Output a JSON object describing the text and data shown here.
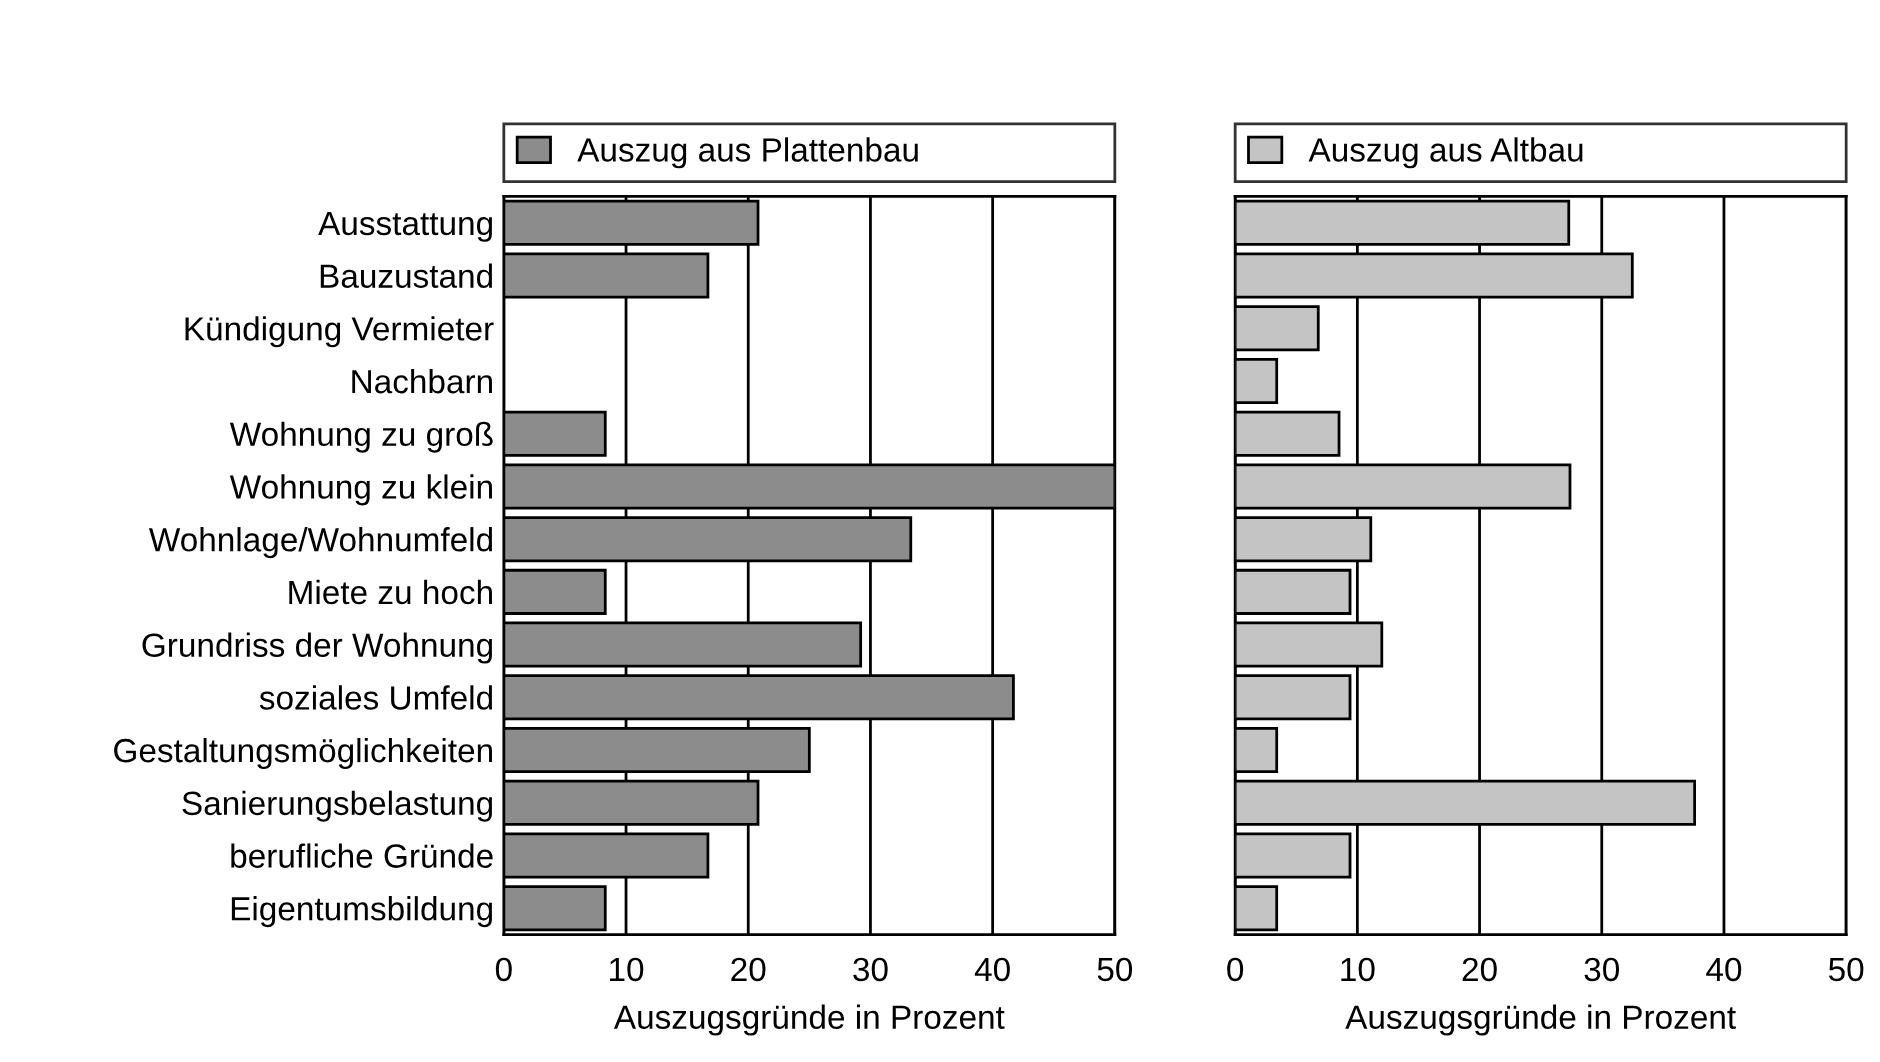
{
  "chart_data": [
    {
      "type": "bar",
      "orientation": "horizontal",
      "xlabel": "Auszugsgründe in Prozent",
      "categories": [
        "Ausstattung",
        "Bauzustand",
        "Kündigung Vermieter",
        "Nachbarn",
        "Wohnung zu groß",
        "Wohnung zu klein",
        "Wohnlage/Wohnumfeld",
        "Miete zu hoch",
        "Grundriss der Wohnung",
        "soziales Umfeld",
        "Gestaltungsmöglichkeiten",
        "Sanierungsbelastung",
        "berufliche Gründe",
        "Eigentumsbildung"
      ],
      "series": [
        {
          "name": "Auszug aus Plattenbau",
          "color": "#8c8c8c",
          "values": [
            20.8,
            16.7,
            0,
            0,
            8.3,
            50,
            33.3,
            8.3,
            29.2,
            41.7,
            25,
            20.8,
            16.7,
            8.3
          ]
        }
      ],
      "xlim": [
        0,
        50
      ],
      "xticks": [
        0,
        10,
        20,
        30,
        40,
        50
      ],
      "grid": "x",
      "legend": "top"
    },
    {
      "type": "bar",
      "orientation": "horizontal",
      "xlabel": "Auszugsgründe in Prozent",
      "categories": [
        null,
        null,
        null,
        null,
        null,
        null,
        null,
        null,
        null,
        null,
        null,
        null,
        null,
        null
      ],
      "series": [
        {
          "name": "Auszug aus Altbau",
          "color": "#c4c4c4",
          "values": [
            27.3,
            32.5,
            6.8,
            3.4,
            8.5,
            27.4,
            11.1,
            9.4,
            12.0,
            9.4,
            3.4,
            37.6,
            9.4,
            3.4
          ]
        }
      ],
      "xlim": [
        0,
        50
      ],
      "xticks": [
        0,
        10,
        20,
        30,
        40,
        50
      ],
      "grid": "x",
      "legend": "top",
      "tick_labels": "x"
    }
  ]
}
